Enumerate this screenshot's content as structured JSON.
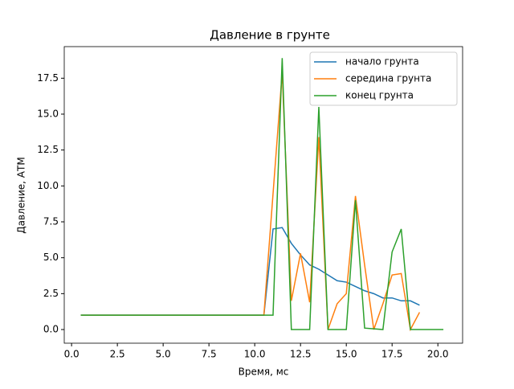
{
  "chart_data": {
    "type": "line",
    "title": "Давление в  грунте",
    "x_label": "Время, мс",
    "y_label": "Давление, АТМ",
    "xlim": [
      -0.4,
      21.35
    ],
    "ylim": [
      -0.95,
      19.7
    ],
    "xticks": [
      {
        "value": 0,
        "label": "0.0"
      },
      2.5,
      {
        "value": 5,
        "label": "5.0"
      },
      7.5,
      {
        "value": 10,
        "label": "10.0"
      },
      12.5,
      {
        "value": 15,
        "label": "15.0"
      },
      17.5,
      {
        "value": 20,
        "label": "20.0"
      }
    ],
    "yticks": [
      {
        "value": 0,
        "label": "0.0"
      },
      2.5,
      {
        "value": 5,
        "label": "5.0"
      },
      7.5,
      {
        "value": 10,
        "label": "10.0"
      },
      12.5,
      {
        "value": 15,
        "label": "15.0"
      },
      17.5
    ],
    "legend": "upper right",
    "series": [
      {
        "name": "начало грунта",
        "color": "#1f77b4",
        "x": [
          0.5,
          10.5,
          11,
          11.5,
          12,
          12.5,
          13,
          13.5,
          14,
          14.5,
          15,
          15.5,
          16,
          16.5,
          17,
          17.5,
          18,
          18.5,
          19
        ],
        "values": [
          1,
          1,
          7.0,
          7.1,
          6.0,
          5.2,
          4.5,
          4.2,
          3.8,
          3.4,
          3.3,
          3.0,
          2.7,
          2.5,
          2.2,
          2.2,
          2.0,
          2.0,
          1.7
        ]
      },
      {
        "name": "середина грунта",
        "color": "#ff7f0e",
        "x": [
          0.5,
          10.5,
          11.5,
          12,
          12.5,
          13,
          13.5,
          14,
          14.5,
          15,
          15.5,
          16,
          16.5,
          17,
          17.5,
          18,
          18.5,
          19
        ],
        "values": [
          1,
          1,
          17.9,
          2.0,
          5.3,
          1.9,
          13.4,
          0.0,
          1.8,
          2.5,
          9.3,
          4.5,
          0.0,
          1.8,
          3.8,
          3.9,
          0.0,
          1.2
        ]
      },
      {
        "name": "конец грунта",
        "color": "#2ca02c",
        "x": [
          0.5,
          11,
          11.5,
          12,
          13,
          13.5,
          14,
          15,
          15.5,
          16,
          17,
          17.5,
          18,
          18.5,
          20.3
        ],
        "values": [
          1,
          1,
          18.9,
          0,
          0,
          15.5,
          0,
          0,
          9.0,
          0.1,
          0,
          5.4,
          7.0,
          0,
          0
        ]
      }
    ]
  }
}
